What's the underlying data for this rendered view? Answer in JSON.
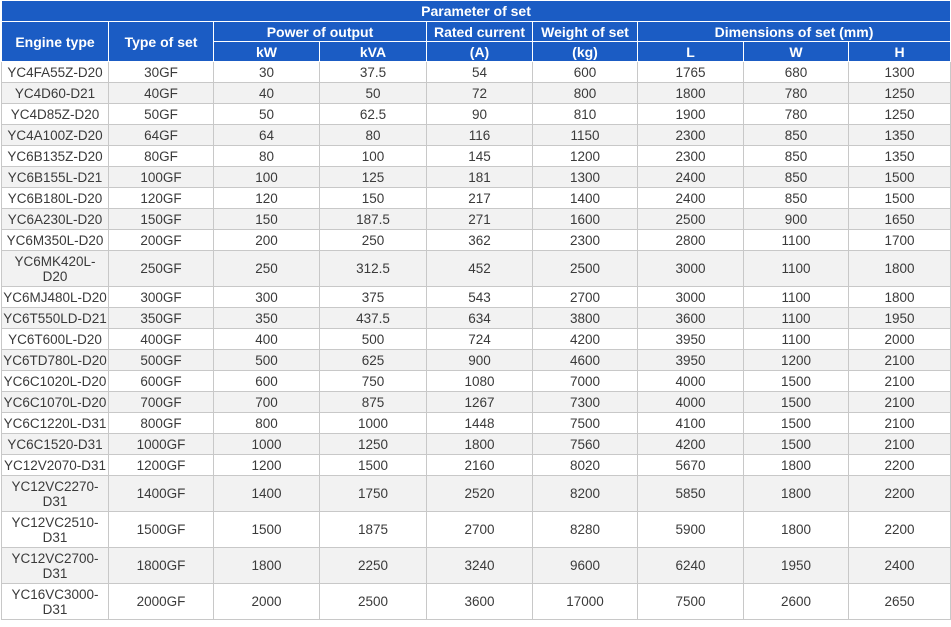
{
  "title": "Parameter of set",
  "headers": {
    "engine_type": "Engine type",
    "type_of_set": "Type of set",
    "power_of_output": "Power of output",
    "kw": "kW",
    "kva": "kVA",
    "rated_current": "Rated current",
    "rated_current_unit": "(A)",
    "weight_of_set": "Weight of set",
    "weight_unit": "(kg)",
    "dimensions": "Dimensions of set (mm)",
    "l": "L",
    "w": "W",
    "h": "H"
  },
  "rows": [
    {
      "engine": "YC4FA55Z-D20",
      "type": "30GF",
      "kw": "30",
      "kva": "37.5",
      "current": "54",
      "weight": "600",
      "l": "1765",
      "w": "680",
      "h": "1300"
    },
    {
      "engine": "YC4D60-D21",
      "type": "40GF",
      "kw": "40",
      "kva": "50",
      "current": "72",
      "weight": "800",
      "l": "1800",
      "w": "780",
      "h": "1250"
    },
    {
      "engine": "YC4D85Z-D20",
      "type": "50GF",
      "kw": "50",
      "kva": "62.5",
      "current": "90",
      "weight": "810",
      "l": "1900",
      "w": "780",
      "h": "1250"
    },
    {
      "engine": "YC4A100Z-D20",
      "type": "64GF",
      "kw": "64",
      "kva": "80",
      "current": "116",
      "weight": "1150",
      "l": "2300",
      "w": "850",
      "h": "1350"
    },
    {
      "engine": "YC6B135Z-D20",
      "type": "80GF",
      "kw": "80",
      "kva": "100",
      "current": "145",
      "weight": "1200",
      "l": "2300",
      "w": "850",
      "h": "1350"
    },
    {
      "engine": "YC6B155L-D21",
      "type": "100GF",
      "kw": "100",
      "kva": "125",
      "current": "181",
      "weight": "1300",
      "l": "2400",
      "w": "850",
      "h": "1500"
    },
    {
      "engine": "YC6B180L-D20",
      "type": "120GF",
      "kw": "120",
      "kva": "150",
      "current": "217",
      "weight": "1400",
      "l": "2400",
      "w": "850",
      "h": "1500"
    },
    {
      "engine": "YC6A230L-D20",
      "type": "150GF",
      "kw": "150",
      "kva": "187.5",
      "current": "271",
      "weight": "1600",
      "l": "2500",
      "w": "900",
      "h": "1650"
    },
    {
      "engine": "YC6M350L-D20",
      "type": "200GF",
      "kw": "200",
      "kva": "250",
      "current": "362",
      "weight": "2300",
      "l": "2800",
      "w": "1100",
      "h": "1700"
    },
    {
      "engine": "YC6MK420L-D20",
      "type": "250GF",
      "kw": "250",
      "kva": "312.5",
      "current": "452",
      "weight": "2500",
      "l": "3000",
      "w": "1100",
      "h": "1800"
    },
    {
      "engine": "YC6MJ480L-D20",
      "type": "300GF",
      "kw": "300",
      "kva": "375",
      "current": "543",
      "weight": "2700",
      "l": "3000",
      "w": "1100",
      "h": "1800"
    },
    {
      "engine": "YC6T550LD-D21",
      "type": "350GF",
      "kw": "350",
      "kva": "437.5",
      "current": "634",
      "weight": "3800",
      "l": "3600",
      "w": "1100",
      "h": "1950"
    },
    {
      "engine": "YC6T600L-D20",
      "type": "400GF",
      "kw": "400",
      "kva": "500",
      "current": "724",
      "weight": "4200",
      "l": "3950",
      "w": "1100",
      "h": "2000"
    },
    {
      "engine": "YC6TD780L-D20",
      "type": "500GF",
      "kw": "500",
      "kva": "625",
      "current": "900",
      "weight": "4600",
      "l": "3950",
      "w": "1200",
      "h": "2100"
    },
    {
      "engine": "YC6C1020L-D20",
      "type": "600GF",
      "kw": "600",
      "kva": "750",
      "current": "1080",
      "weight": "7000",
      "l": "4000",
      "w": "1500",
      "h": "2100"
    },
    {
      "engine": "YC6C1070L-D20",
      "type": "700GF",
      "kw": "700",
      "kva": "875",
      "current": "1267",
      "weight": "7300",
      "l": "4000",
      "w": "1500",
      "h": "2100"
    },
    {
      "engine": "YC6C1220L-D31",
      "type": "800GF",
      "kw": "800",
      "kva": "1000",
      "current": "1448",
      "weight": "7500",
      "l": "4100",
      "w": "1500",
      "h": "2100"
    },
    {
      "engine": "YC6C1520-D31",
      "type": "1000GF",
      "kw": "1000",
      "kva": "1250",
      "current": "1800",
      "weight": "7560",
      "l": "4200",
      "w": "1500",
      "h": "2100"
    },
    {
      "engine": "YC12V2070-D31",
      "type": "1200GF",
      "kw": "1200",
      "kva": "1500",
      "current": "2160",
      "weight": "8020",
      "l": "5670",
      "w": "1800",
      "h": "2200"
    },
    {
      "engine": "YC12VC2270-D31",
      "type": "1400GF",
      "kw": "1400",
      "kva": "1750",
      "current": "2520",
      "weight": "8200",
      "l": "5850",
      "w": "1800",
      "h": "2200"
    },
    {
      "engine": "YC12VC2510-D31",
      "type": "1500GF",
      "kw": "1500",
      "kva": "1875",
      "current": "2700",
      "weight": "8280",
      "l": "5900",
      "w": "1800",
      "h": "2200"
    },
    {
      "engine": "YC12VC2700-D31",
      "type": "1800GF",
      "kw": "1800",
      "kva": "2250",
      "current": "3240",
      "weight": "9600",
      "l": "6240",
      "w": "1950",
      "h": "2400"
    },
    {
      "engine": "YC16VC3000-D31",
      "type": "2000GF",
      "kw": "2000",
      "kva": "2500",
      "current": "3600",
      "weight": "17000",
      "l": "7500",
      "w": "2600",
      "h": "2650"
    }
  ]
}
